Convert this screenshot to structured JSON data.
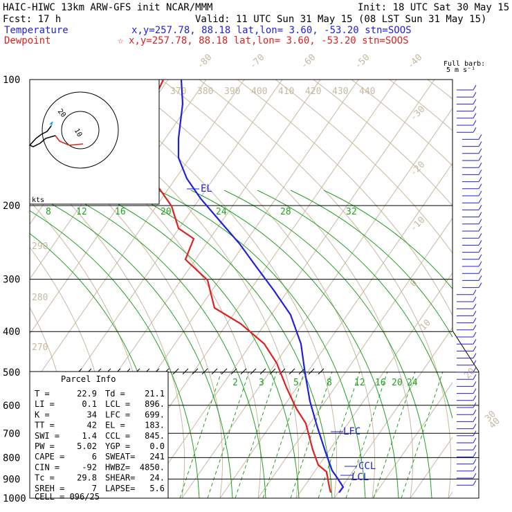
{
  "header": {
    "line1_left": "HAIC-HIWC 13km ARW-GFS init   NCAR/MMM",
    "line1_right": "Init: 18 UTC Sat 30 May 15",
    "line2_left": "Fcst:    17 h",
    "line2_right": "Valid: 11 UTC Sun 31 May 15 (08 LST Sun 31 May 15)",
    "temp_label": "Temperature",
    "temp_info": "x,y=257.78, 88.18    lat,lon=  3.60, -53.20  stn=SOOS",
    "dew_label": "Dewpoint",
    "dew_info": "x,y=257.78, 88.18    lat,lon=  3.60, -53.20  stn=SOOS",
    "dew_star": "☆"
  },
  "chart_data": {
    "type": "line",
    "pressure_levels": [
      "100",
      "200",
      "300",
      "400",
      "500",
      "600",
      "700",
      "800",
      "900",
      "1000"
    ],
    "skewed_temp_labels": [
      "-80",
      "-70",
      "-60",
      "-50",
      "-40",
      "-30",
      "-20",
      "-10",
      "0",
      "10",
      "20",
      "30",
      "40"
    ],
    "theta_labels_top": [
      "370",
      "380",
      "390",
      "400",
      "410",
      "420",
      "430",
      "440"
    ],
    "theta_labels_left": [
      "290",
      "280",
      "270"
    ],
    "mixing_ratio_upper": [
      "8",
      "12",
      "16",
      "20",
      "24",
      "28",
      "32"
    ],
    "mixing_ratio_lower": [
      "2",
      "3",
      "5",
      "8",
      "12",
      "16",
      "20",
      "24"
    ],
    "series": [
      {
        "name": "Temperature",
        "color": "#1f1fe0"
      },
      {
        "name": "Dewpoint",
        "color": "#e02020"
      }
    ],
    "annotations": {
      "el": "EL",
      "lfc": "LFC",
      "ccl": "CCL",
      "lcl": "LCL"
    },
    "hodograph": {
      "units": "kts",
      "ring_labels": [
        "10",
        "20"
      ]
    },
    "barb_note": {
      "line1": "Full barb:",
      "line2": "5 m s⁻¹"
    }
  },
  "parcel": {
    "title": "Parcel Info",
    "rows": [
      [
        "T   =",
        "22.9",
        "Td =",
        "21.1"
      ],
      [
        "LI  =",
        "0.1",
        "LCL =",
        "896."
      ],
      [
        "K   =",
        "34",
        "LFC =",
        "699."
      ],
      [
        "TT  =",
        "42",
        "EL  =",
        "183."
      ],
      [
        "SWI =",
        "1.4",
        "CCL =",
        "845."
      ],
      [
        "PW  =",
        "5.02",
        "YGP =",
        "0.0"
      ],
      [
        "CAPE =",
        "6",
        "SWEAT=",
        "241"
      ],
      [
        "CIN  =",
        "-92",
        "HWBZ=",
        "4850."
      ],
      [
        "Tc  =",
        "29.8",
        "SHEAR=",
        "24."
      ],
      [
        "SREH =",
        "7",
        "LAPSE=",
        "5.6"
      ]
    ],
    "cell_label": "CELL = 096/25"
  },
  "colors": {
    "temperature": "#1f1fe0",
    "dewpoint": "#e02020",
    "isotherm": "#c8b8a0",
    "mixing": "#21a121",
    "moist": "#21a121",
    "frame": "#000000"
  }
}
